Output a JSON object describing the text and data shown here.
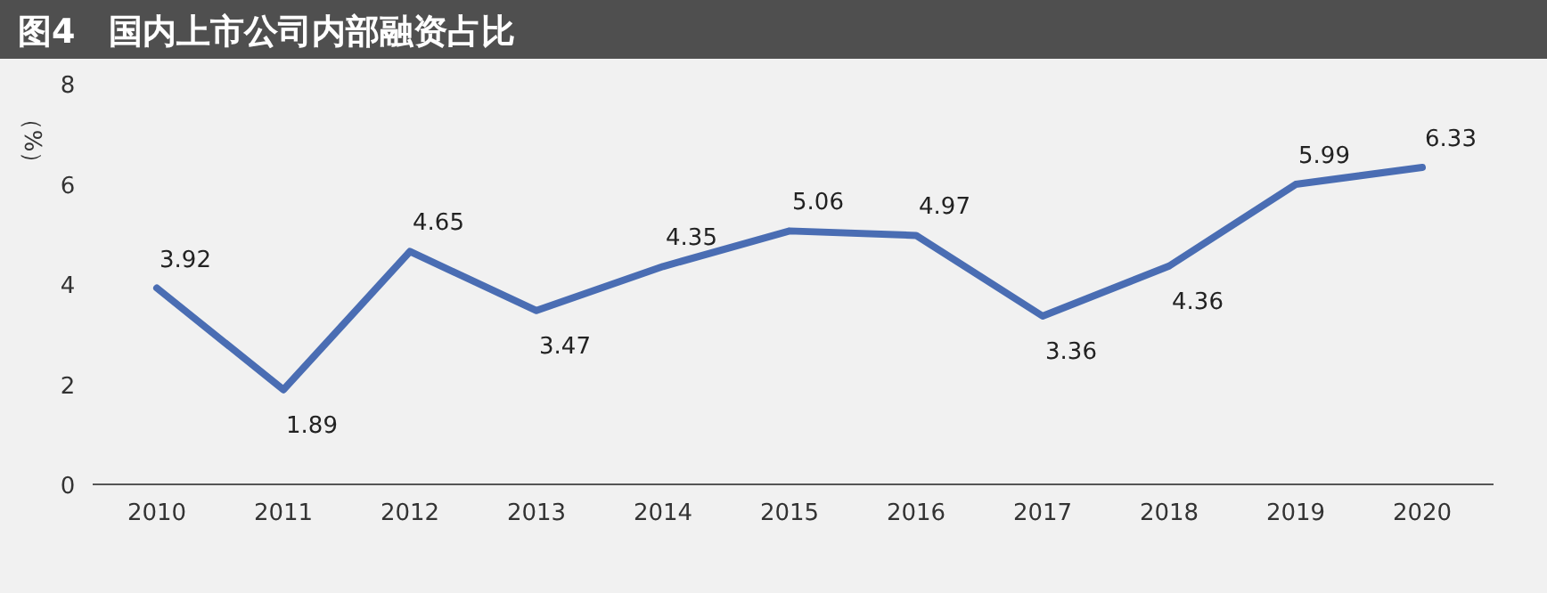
{
  "chart_data": {
    "type": "line",
    "title": "图4　国内上市公司内部融资占比",
    "ylabel": "（%）",
    "categories": [
      "2010",
      "2011",
      "2012",
      "2013",
      "2014",
      "2015",
      "2016",
      "2017",
      "2018",
      "2019",
      "2020"
    ],
    "series": [
      {
        "color": "#4a6db3",
        "values": [
          3.92,
          1.89,
          4.65,
          3.47,
          4.35,
          5.06,
          4.97,
          3.36,
          4.36,
          5.99,
          6.33
        ]
      }
    ],
    "ylim": [
      0,
      8
    ],
    "yticks": [
      0,
      2,
      4,
      6,
      8
    ],
    "data_labels": true
  }
}
